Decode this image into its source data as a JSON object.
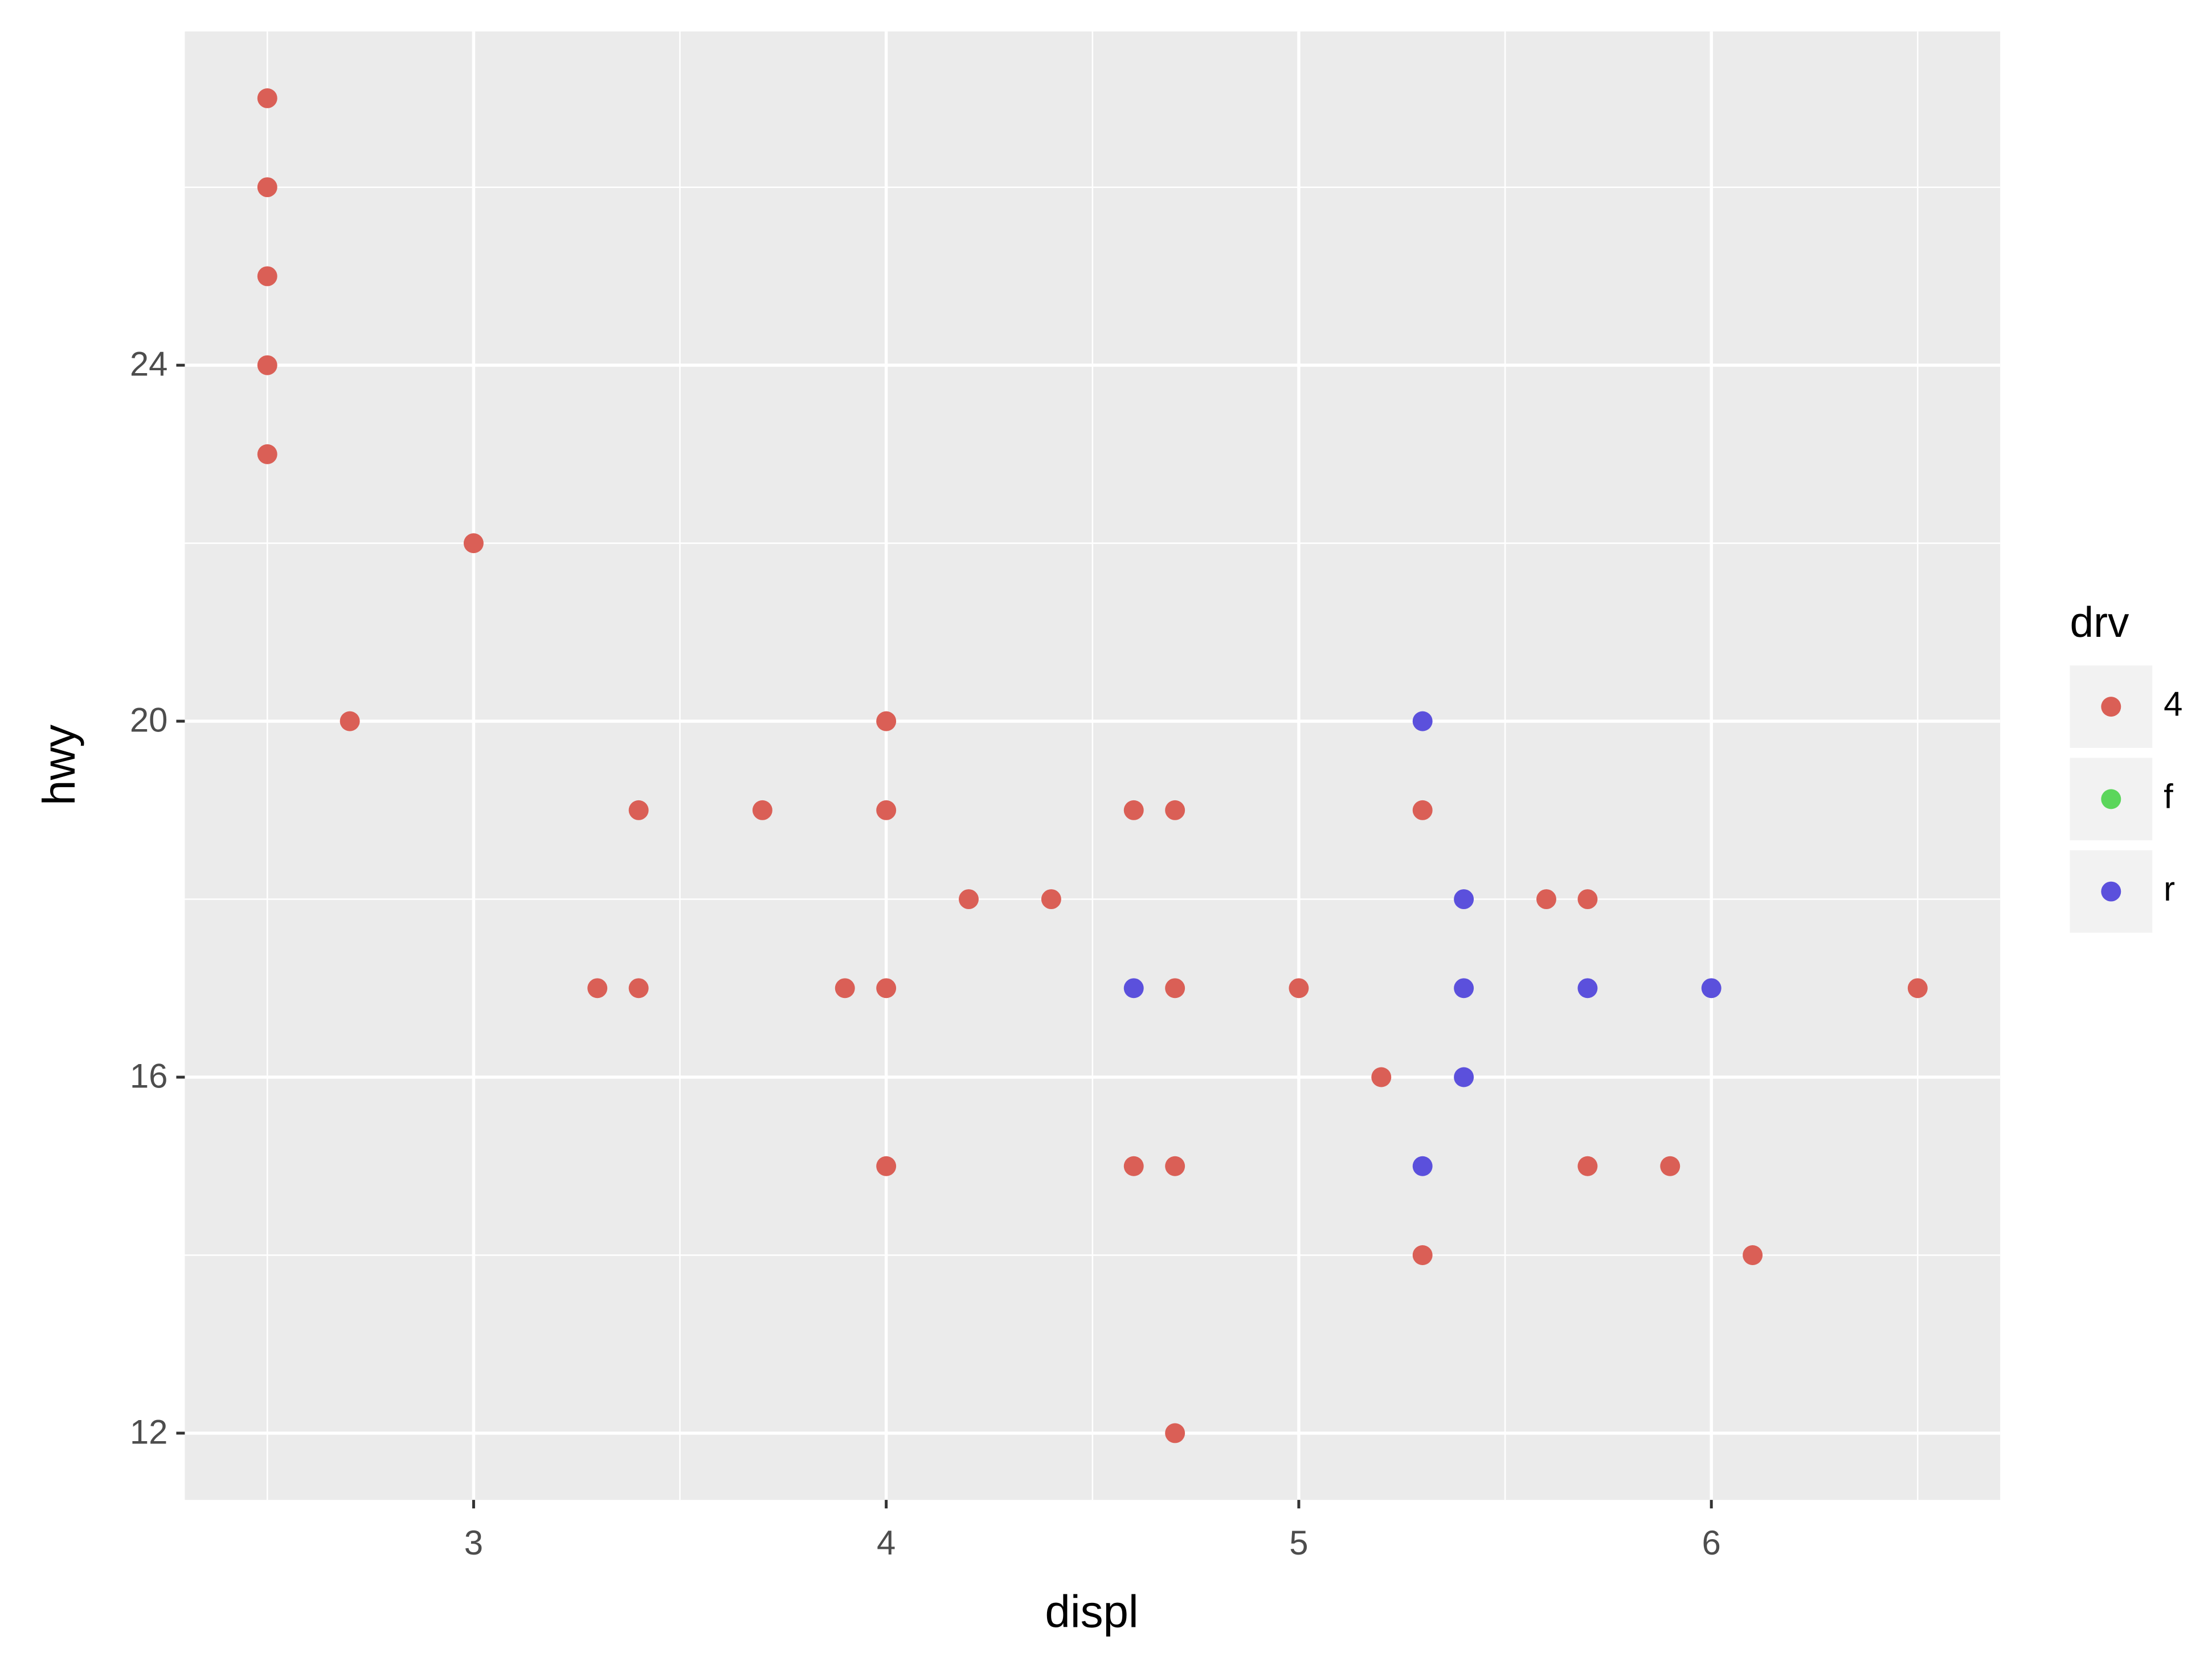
{
  "chart_data": {
    "type": "scatter",
    "xlabel": "displ",
    "ylabel": "hwy",
    "legend_title": "drv",
    "legend": "right",
    "xlim": [
      2.3,
      6.7
    ],
    "ylim": [
      11.25,
      27.75
    ],
    "xticks": [
      3,
      4,
      5,
      6
    ],
    "yticks": [
      12,
      16,
      20,
      24
    ],
    "grid": true,
    "series": [
      {
        "name": "4",
        "color": "#da5f56",
        "x": [
          2.5,
          2.5,
          2.5,
          2.5,
          2.5,
          3.0,
          2.7,
          3.4,
          3.7,
          4.0,
          4.0,
          3.3,
          3.4,
          3.9,
          4.0,
          4.2,
          4.4,
          4.0,
          4.6,
          4.7,
          4.7,
          5.0,
          4.6,
          4.7,
          4.7,
          5.3,
          5.2,
          5.3,
          5.6,
          5.7,
          5.7,
          5.9,
          6.1,
          6.5
        ],
        "y": [
          27,
          26,
          25,
          24,
          23,
          22,
          20,
          19,
          19,
          20,
          19,
          17,
          17,
          17,
          17,
          18,
          18,
          15,
          19,
          19,
          17,
          17,
          15,
          15,
          12,
          19,
          16,
          14,
          18,
          18,
          15,
          15,
          14,
          17
        ]
      },
      {
        "name": "f",
        "color": "#5bd65b",
        "x": [],
        "y": []
      },
      {
        "name": "r",
        "color": "#5b50dc",
        "x": [
          5.3,
          5.4,
          4.6,
          5.4,
          5.7,
          6.0,
          5.4,
          5.3
        ],
        "y": [
          20,
          18,
          17,
          17,
          17,
          17,
          16,
          15
        ]
      }
    ]
  }
}
